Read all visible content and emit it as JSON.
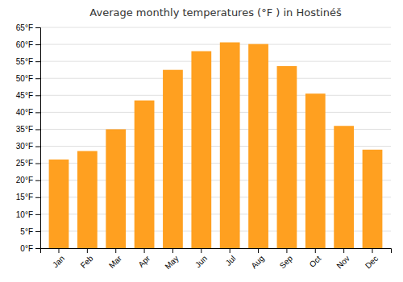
{
  "chart_data": {
    "type": "bar",
    "title": "Average monthly temperatures (°F ) in Hostinéš",
    "categories": [
      "Jan",
      "Feb",
      "Mar",
      "Apr",
      "May",
      "Jun",
      "Jul",
      "Aug",
      "Sep",
      "Oct",
      "Nov",
      "Dec"
    ],
    "values": [
      26.1,
      28.6,
      35.0,
      43.5,
      52.5,
      58.0,
      60.6,
      60.1,
      53.6,
      45.5,
      36.0,
      29.0
    ],
    "color": "#FFA020",
    "ylim": [
      0,
      65
    ],
    "yticks": [
      {
        "value": 0,
        "label": "0°F"
      },
      {
        "value": 5,
        "label": "5°F"
      },
      {
        "value": 10,
        "label": "10°F"
      },
      {
        "value": 15,
        "label": "15°F"
      },
      {
        "value": 20,
        "label": "20°F"
      },
      {
        "value": 25,
        "label": "25°F"
      },
      {
        "value": 30,
        "label": "30°F"
      },
      {
        "value": 35,
        "label": "35°F"
      },
      {
        "value": 40,
        "label": "40°F"
      },
      {
        "value": 45,
        "label": "45°F"
      },
      {
        "value": 50,
        "label": "50°F"
      },
      {
        "value": 55,
        "label": "55°F"
      },
      {
        "value": 60,
        "label": "60°F"
      },
      {
        "value": 65,
        "label": "65°F"
      }
    ],
    "grid": true
  }
}
